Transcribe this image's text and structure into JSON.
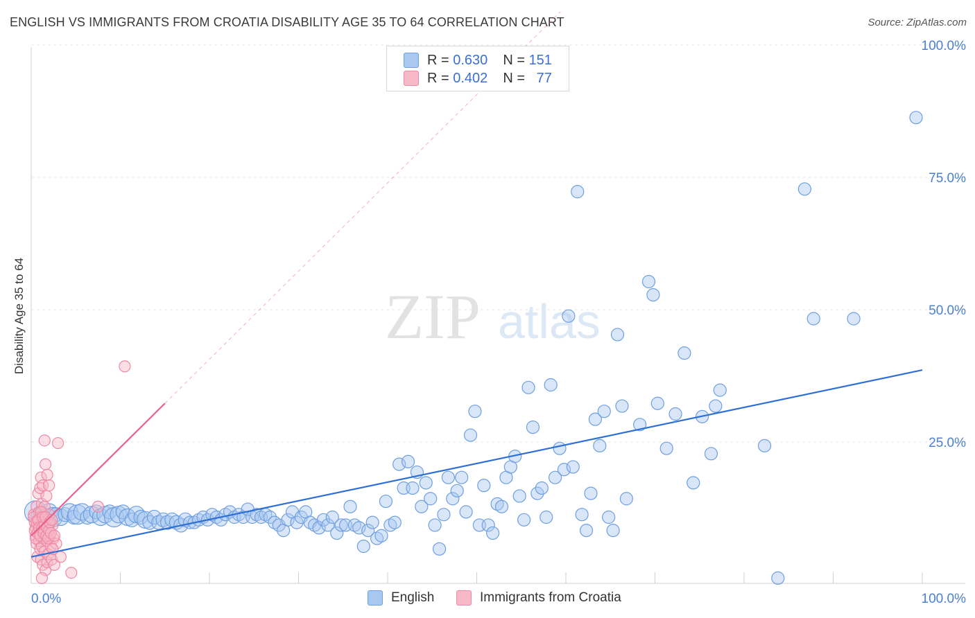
{
  "title": "ENGLISH VS IMMIGRANTS FROM CROATIA DISABILITY AGE 35 TO 64 CORRELATION CHART",
  "source": "Source: ZipAtlas.com",
  "watermark": {
    "zip": "ZIP",
    "atlas": "atlas"
  },
  "legend_top": {
    "rows": [
      {
        "r_label": "R =",
        "r_value": "0.630",
        "n_label": "N =",
        "n_value": "151"
      },
      {
        "r_label": "R =",
        "r_value": "0.402",
        "n_label": "N =",
        "n_value": "77"
      }
    ]
  },
  "legend_bottom": {
    "english": "English",
    "croatia": "Immigrants from Croatia"
  },
  "colors": {
    "english_fill": "#a8c8f0",
    "english_stroke": "#6e9fe0",
    "english_line": "#2e6fd4",
    "croatia_fill": "#f7b8c8",
    "croatia_stroke": "#ee89a6",
    "croatia_line": "#e8608a",
    "grid": "#e4e4e4",
    "axis_text": "#4a7fd4"
  },
  "chart_data": {
    "type": "scatter",
    "title": "ENGLISH VS IMMIGRANTS FROM CROATIA DISABILITY AGE 35 TO 64 CORRELATION CHART",
    "xlabel": "",
    "ylabel": "Disability Age 35 to 64",
    "xlim": [
      0,
      100
    ],
    "ylim": [
      0,
      100
    ],
    "x_tick_labels": [
      "0.0%",
      "100.0%"
    ],
    "y_ticks": [
      25,
      50,
      75,
      100
    ],
    "y_tick_labels": [
      "25.0%",
      "50.0%",
      "75.0%",
      "100.0%"
    ],
    "grid": true,
    "series": [
      {
        "name": "English",
        "r": 0.63,
        "n": 151,
        "trend": {
          "x": [
            0,
            100
          ],
          "y": [
            5.0,
            40.3
          ]
        },
        "points": [
          [
            0.5,
            13.5,
            16
          ],
          [
            0.9,
            12.5,
            12
          ],
          [
            1.2,
            13.0,
            10
          ],
          [
            1.6,
            12.0,
            10
          ],
          [
            2.0,
            13.5,
            12
          ],
          [
            2.4,
            12.5,
            14
          ],
          [
            2.8,
            13.0,
            10
          ],
          [
            3.3,
            12.5,
            12
          ],
          [
            3.8,
            13.0,
            10
          ],
          [
            4.3,
            13.5,
            12
          ],
          [
            4.8,
            12.5,
            10
          ],
          [
            5.2,
            13.0,
            14
          ],
          [
            5.7,
            13.5,
            12
          ],
          [
            6.3,
            12.5,
            10
          ],
          [
            6.8,
            13.0,
            12
          ],
          [
            7.3,
            13.5,
            10
          ],
          [
            7.8,
            12.5,
            12
          ],
          [
            8.3,
            13.0,
            12
          ],
          [
            8.8,
            13.5,
            10
          ],
          [
            9.3,
            12.5,
            14
          ],
          [
            9.8,
            13.0,
            12
          ],
          [
            10.3,
            13.5,
            10
          ],
          [
            10.8,
            12.5,
            12
          ],
          [
            11.3,
            12.0,
            10
          ],
          [
            11.8,
            13.0,
            12
          ],
          [
            12.3,
            12.5,
            10
          ],
          [
            12.8,
            12.0,
            12
          ],
          [
            13.3,
            11.5,
            10
          ],
          [
            13.8,
            12.5,
            10
          ],
          [
            14.3,
            11.5,
            10
          ],
          [
            14.8,
            12.0,
            10
          ],
          [
            15.3,
            11.5,
            10
          ],
          [
            15.8,
            12.0,
            10
          ],
          [
            16.3,
            11.5,
            10
          ],
          [
            16.8,
            11.0,
            10
          ],
          [
            17.3,
            12.0,
            10
          ],
          [
            17.8,
            11.5,
            9
          ],
          [
            18.3,
            11.5,
            9
          ],
          [
            18.8,
            12.0,
            9
          ],
          [
            19.3,
            12.5,
            9
          ],
          [
            19.8,
            12.0,
            9
          ],
          [
            20.3,
            13.0,
            9
          ],
          [
            20.8,
            12.5,
            9
          ],
          [
            21.3,
            12.0,
            9
          ],
          [
            21.8,
            13.0,
            9
          ],
          [
            22.3,
            13.5,
            9
          ],
          [
            22.8,
            12.5,
            9
          ],
          [
            23.3,
            13.0,
            9
          ],
          [
            23.8,
            12.5,
            9
          ],
          [
            24.3,
            14.0,
            9
          ],
          [
            24.8,
            12.5,
            9
          ],
          [
            25.3,
            13.0,
            9
          ],
          [
            25.8,
            12.5,
            9
          ],
          [
            26.3,
            13.0,
            9
          ],
          [
            26.8,
            12.5,
            9
          ],
          [
            27.3,
            11.5,
            9
          ],
          [
            27.8,
            11.0,
            9
          ],
          [
            28.3,
            10.0,
            9
          ],
          [
            28.8,
            12.0,
            9
          ],
          [
            29.3,
            13.5,
            9
          ],
          [
            29.8,
            11.5,
            9
          ],
          [
            30.3,
            12.5,
            9
          ],
          [
            30.8,
            13.5,
            9
          ],
          [
            31.3,
            11.5,
            9
          ],
          [
            31.8,
            11.0,
            9
          ],
          [
            32.3,
            10.5,
            9
          ],
          [
            32.8,
            12.0,
            9
          ],
          [
            33.3,
            11.0,
            9
          ],
          [
            33.8,
            12.5,
            9
          ],
          [
            34.3,
            9.5,
            9
          ],
          [
            34.8,
            11.0,
            9
          ],
          [
            35.3,
            11.0,
            9
          ],
          [
            35.8,
            14.5,
            9
          ],
          [
            36.3,
            11.0,
            9
          ],
          [
            36.8,
            10.5,
            9
          ],
          [
            37.3,
            7.0,
            9
          ],
          [
            37.8,
            10.0,
            9
          ],
          [
            38.3,
            11.5,
            9
          ],
          [
            38.8,
            8.5,
            9
          ],
          [
            39.3,
            9.0,
            9
          ],
          [
            39.8,
            15.5,
            9
          ],
          [
            40.3,
            11.0,
            9
          ],
          [
            40.8,
            11.5,
            9
          ],
          [
            41.3,
            22.5,
            9
          ],
          [
            41.8,
            18.0,
            9
          ],
          [
            42.3,
            23.0,
            9
          ],
          [
            42.8,
            18.0,
            9
          ],
          [
            43.3,
            21.0,
            9
          ],
          [
            43.8,
            14.5,
            9
          ],
          [
            44.3,
            19.0,
            9
          ],
          [
            44.8,
            16.0,
            9
          ],
          [
            45.3,
            11.0,
            9
          ],
          [
            45.8,
            6.5,
            9
          ],
          [
            46.3,
            13.0,
            9
          ],
          [
            46.8,
            20.0,
            9
          ],
          [
            47.3,
            16.0,
            9
          ],
          [
            47.8,
            17.5,
            9
          ],
          [
            48.3,
            20.0,
            9
          ],
          [
            48.8,
            13.5,
            9
          ],
          [
            49.3,
            28.0,
            9
          ],
          [
            49.8,
            32.5,
            9
          ],
          [
            50.3,
            11.0,
            9
          ],
          [
            50.8,
            18.5,
            9
          ],
          [
            51.3,
            11.0,
            9
          ],
          [
            51.8,
            9.5,
            9
          ],
          [
            52.3,
            15.0,
            9
          ],
          [
            52.8,
            14.5,
            9
          ],
          [
            53.3,
            20.0,
            9
          ],
          [
            53.8,
            22.0,
            9
          ],
          [
            54.3,
            24.0,
            9
          ],
          [
            54.8,
            16.5,
            9
          ],
          [
            55.3,
            12.0,
            9
          ],
          [
            55.8,
            37.0,
            9
          ],
          [
            56.3,
            29.5,
            9
          ],
          [
            56.8,
            17.0,
            9
          ],
          [
            57.3,
            18.0,
            9
          ],
          [
            57.8,
            12.5,
            9
          ],
          [
            58.3,
            37.5,
            9
          ],
          [
            58.8,
            20.0,
            9
          ],
          [
            59.3,
            25.5,
            9
          ],
          [
            59.8,
            21.5,
            9
          ],
          [
            60.3,
            50.5,
            9
          ],
          [
            60.8,
            22.0,
            9
          ],
          [
            61.3,
            74.0,
            9
          ],
          [
            61.8,
            13.0,
            9
          ],
          [
            62.3,
            10.0,
            9
          ],
          [
            62.8,
            17.0,
            9
          ],
          [
            63.3,
            31.0,
            9
          ],
          [
            63.8,
            26.0,
            9
          ],
          [
            64.3,
            32.5,
            9
          ],
          [
            64.8,
            12.5,
            9
          ],
          [
            65.3,
            10.0,
            9
          ],
          [
            65.8,
            47.0,
            9
          ],
          [
            66.3,
            33.5,
            9
          ],
          [
            66.8,
            16.0,
            9
          ],
          [
            68.3,
            30.0,
            9
          ],
          [
            69.3,
            57.0,
            9
          ],
          [
            69.8,
            54.5,
            9
          ],
          [
            70.3,
            34.0,
            9
          ],
          [
            71.3,
            25.5,
            9
          ],
          [
            72.3,
            32.0,
            9
          ],
          [
            73.3,
            43.5,
            9
          ],
          [
            74.3,
            19.0,
            9
          ],
          [
            75.3,
            31.5,
            9
          ],
          [
            76.3,
            24.5,
            9
          ],
          [
            76.8,
            33.5,
            9
          ],
          [
            77.3,
            36.5,
            9
          ],
          [
            82.3,
            26.0,
            9
          ],
          [
            83.8,
            1.0,
            9
          ],
          [
            86.8,
            74.5,
            9
          ],
          [
            87.8,
            50.0,
            9
          ],
          [
            92.3,
            50.0,
            9
          ],
          [
            99.3,
            88.0,
            9
          ]
        ]
      },
      {
        "name": "Immigrants from Croatia",
        "r": 0.402,
        "n": 77,
        "trend": {
          "x": [
            0,
            15
          ],
          "y": [
            9.0,
            34.0
          ],
          "dashed_extension_to": [
            100,
            188
          ]
        },
        "points": [
          [
            0.3,
            13.0
          ],
          [
            0.4,
            11.5
          ],
          [
            0.5,
            10.5
          ],
          [
            0.5,
            9.0
          ],
          [
            0.6,
            14.5
          ],
          [
            0.6,
            7.5
          ],
          [
            0.7,
            12.0
          ],
          [
            0.7,
            5.0
          ],
          [
            0.8,
            17.0
          ],
          [
            0.8,
            10.0
          ],
          [
            0.9,
            13.5
          ],
          [
            0.9,
            8.0
          ],
          [
            1.0,
            18.0
          ],
          [
            1.0,
            11.0
          ],
          [
            1.0,
            6.5
          ],
          [
            1.1,
            20.0
          ],
          [
            1.1,
            12.5
          ],
          [
            1.1,
            4.5
          ],
          [
            1.2,
            15.0
          ],
          [
            1.2,
            9.5
          ],
          [
            1.2,
            7.0
          ],
          [
            1.3,
            18.5
          ],
          [
            1.3,
            11.0
          ],
          [
            1.3,
            3.5
          ],
          [
            1.4,
            12.0
          ],
          [
            1.4,
            8.5
          ],
          [
            1.5,
            27.0
          ],
          [
            1.5,
            14.5
          ],
          [
            1.5,
            6.0
          ],
          [
            1.6,
            22.5
          ],
          [
            1.6,
            10.0
          ],
          [
            1.6,
            2.5
          ],
          [
            1.7,
            16.5
          ],
          [
            1.7,
            12.0
          ],
          [
            1.8,
            20.5
          ],
          [
            1.8,
            8.0
          ],
          [
            1.8,
            4.0
          ],
          [
            1.9,
            11.5
          ],
          [
            1.9,
            5.5
          ],
          [
            2.0,
            18.5
          ],
          [
            2.0,
            13.0
          ],
          [
            2.1,
            9.0
          ],
          [
            2.2,
            7.0
          ],
          [
            2.3,
            4.5
          ],
          [
            2.4,
            11.0
          ],
          [
            2.5,
            8.5
          ],
          [
            2.6,
            3.5
          ],
          [
            2.8,
            7.5
          ],
          [
            3.0,
            26.5
          ],
          [
            4.5,
            2.0
          ],
          [
            7.5,
            14.5
          ],
          [
            10.5,
            41.0
          ],
          [
            0.3,
            12.5
          ],
          [
            0.4,
            10.0
          ],
          [
            0.5,
            8.5
          ],
          [
            0.6,
            11.5
          ],
          [
            0.7,
            9.5
          ],
          [
            0.8,
            12.0
          ],
          [
            0.9,
            10.5
          ],
          [
            1.0,
            9.0
          ],
          [
            1.1,
            13.5
          ],
          [
            1.2,
            10.5
          ],
          [
            1.3,
            12.5
          ],
          [
            1.4,
            9.5
          ],
          [
            1.5,
            11.0
          ],
          [
            1.6,
            12.5
          ],
          [
            1.7,
            9.0
          ],
          [
            1.8,
            10.5
          ],
          [
            1.9,
            8.5
          ],
          [
            2.0,
            10.0
          ],
          [
            2.1,
            11.5
          ],
          [
            2.2,
            9.5
          ],
          [
            2.3,
            12.0
          ],
          [
            2.4,
            6.5
          ],
          [
            2.6,
            9.0
          ],
          [
            3.3,
            5.0
          ],
          [
            1.2,
            1.0
          ]
        ]
      }
    ]
  }
}
